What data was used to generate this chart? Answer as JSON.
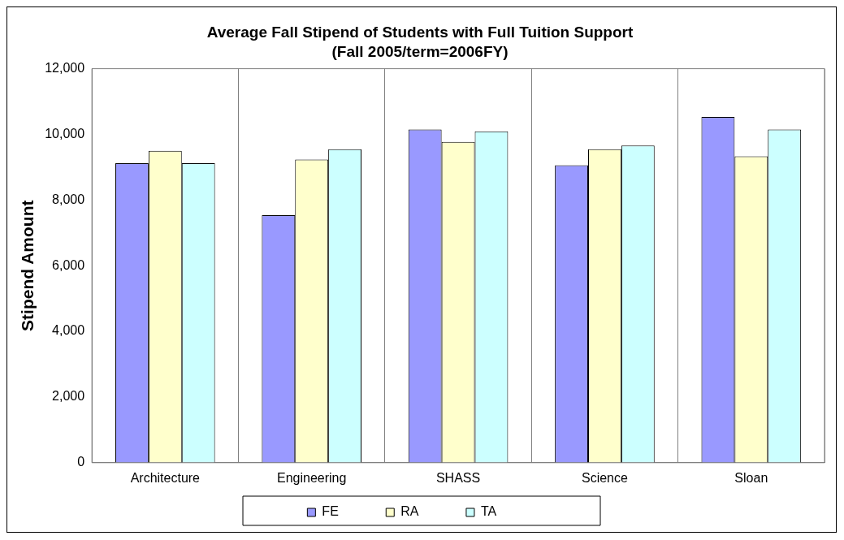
{
  "chart_data": {
    "type": "bar",
    "title": "Average Fall Stipend of Students with Full Tuition Support",
    "subtitle": "(Fall 2005/term=2006FY)",
    "ylabel": "Stipend Amount",
    "categories": [
      "Architecture",
      "Engineering",
      "SHASS",
      "Science",
      "Sloan"
    ],
    "series": [
      {
        "name": "FE",
        "color": "#9999ff",
        "values": [
          9120,
          7540,
          10150,
          9060,
          10530
        ]
      },
      {
        "name": "RA",
        "color": "#ffffcc",
        "values": [
          9500,
          9230,
          9770,
          9550,
          9330
        ]
      },
      {
        "name": "TA",
        "color": "#ccffff",
        "values": [
          9120,
          9550,
          10090,
          9660,
          10150
        ]
      }
    ],
    "ylim": [
      0,
      12000
    ],
    "yticks": [
      0,
      {
        "value": 2000,
        "label": "2,000"
      },
      {
        "value": 4000,
        "label": "4,000"
      },
      {
        "value": 6000,
        "label": "6,000"
      },
      {
        "value": 8000,
        "label": "8,000"
      },
      {
        "value": 10000,
        "label": "10,000"
      },
      {
        "value": 12000,
        "label": "12,000"
      }
    ],
    "grid": "x",
    "legend": "bottom"
  }
}
